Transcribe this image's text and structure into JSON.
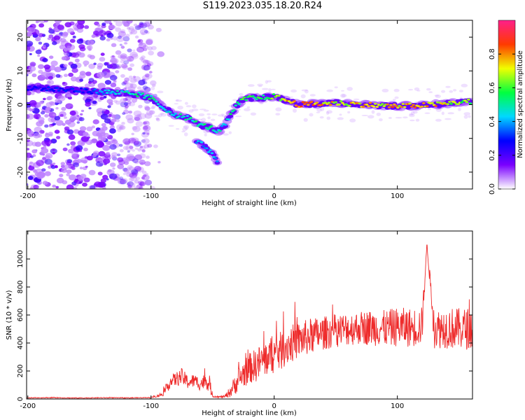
{
  "title": "S119.2023.035.18.20.R24",
  "colors": {
    "snr_line": "#ee2b2b",
    "axis": "#000000",
    "colormap": [
      "#ffffff",
      "#7a00ff",
      "#0000ff",
      "#00d8ff",
      "#00ff40",
      "#f0ff00",
      "#ff3a00",
      "#ff1f8a"
    ]
  },
  "chart_data": [
    {
      "type": "heatmap",
      "title": "S119.2023.035.18.20.R24",
      "xlabel": "Height of straight line (km)",
      "ylabel": "Frequency (Hz)",
      "xlim": [
        -201,
        161
      ],
      "ylim": [
        -25,
        25
      ],
      "x_ticks": [
        -200,
        -100,
        0,
        100
      ],
      "y_ticks": [
        -20,
        -10,
        0,
        10,
        20
      ],
      "colorbar": {
        "label": "Normalized spectral amplitude",
        "range": [
          0,
          1
        ],
        "ticks": [
          0.0,
          0.2,
          0.4,
          0.6,
          0.8
        ]
      },
      "ridge": {
        "x": [
          -200,
          -150,
          -125,
          -110,
          -100,
          -90,
          -80,
          -70,
          -60,
          -50,
          -45,
          -40,
          -35,
          -30,
          -25,
          -20,
          -10,
          0,
          20,
          50,
          100,
          130,
          160
        ],
        "freq": [
          5,
          4,
          3.5,
          3,
          2,
          -1,
          -3,
          -4,
          -6,
          -7,
          -8,
          -6,
          -3,
          0,
          1.5,
          2,
          2,
          2.5,
          0,
          0.5,
          -0.5,
          0,
          1
        ],
        "amplitude": [
          0.25,
          0.3,
          0.45,
          0.5,
          0.5,
          0.45,
          0.45,
          0.5,
          0.5,
          0.5,
          0.45,
          0.45,
          0.5,
          0.55,
          0.55,
          0.6,
          0.55,
          0.6,
          0.9,
          0.7,
          0.75,
          0.75,
          0.6
        ]
      },
      "branch": {
        "x": [
          -63,
          -58,
          -53,
          -49,
          -46
        ],
        "freq": [
          -11,
          -12,
          -13.5,
          -15.5,
          -17.5
        ]
      },
      "noise_region_x": [
        -201,
        -100
      ]
    },
    {
      "type": "line",
      "xlabel": "Height of straight line (km)",
      "ylabel": "SNR (10 * v/v)",
      "xlim": [
        -201,
        161
      ],
      "ylim": [
        0,
        1200
      ],
      "x_ticks": [
        -200,
        -100,
        0,
        100
      ],
      "y_ticks": [
        0,
        200,
        400,
        600,
        800,
        1000
      ],
      "series": [
        {
          "x": [
            -201,
            -180,
            -160,
            -140,
            -120,
            -100,
            -92,
            -88,
            -85,
            -80,
            -75,
            -70,
            -65,
            -60,
            -55,
            -52,
            -50,
            -45,
            -40,
            -36,
            -32,
            -28,
            -25,
            -20,
            -15,
            -10,
            -5,
            0,
            5,
            10,
            20,
            30,
            40,
            50,
            60,
            70,
            80,
            90,
            100,
            110,
            120,
            124,
            130,
            140,
            150,
            161
          ],
          "y": [
            8,
            10,
            7,
            9,
            8,
            10,
            30,
            60,
            120,
            140,
            160,
            120,
            130,
            110,
            130,
            90,
            20,
            15,
            18,
            50,
            100,
            150,
            180,
            220,
            240,
            270,
            300,
            320,
            340,
            380,
            420,
            450,
            470,
            490,
            500,
            510,
            510,
            505,
            515,
            510,
            520,
            1100,
            500,
            510,
            500,
            505
          ],
          "band": [
            3,
            3,
            3,
            3,
            3,
            3,
            15,
            30,
            50,
            50,
            60,
            50,
            50,
            50,
            60,
            50,
            8,
            6,
            8,
            40,
            70,
            90,
            100,
            110,
            120,
            130,
            130,
            140,
            140,
            140,
            130,
            130,
            120,
            120,
            120,
            120,
            130,
            130,
            140,
            140,
            140,
            0,
            140,
            150,
            150,
            150
          ]
        }
      ]
    }
  ]
}
